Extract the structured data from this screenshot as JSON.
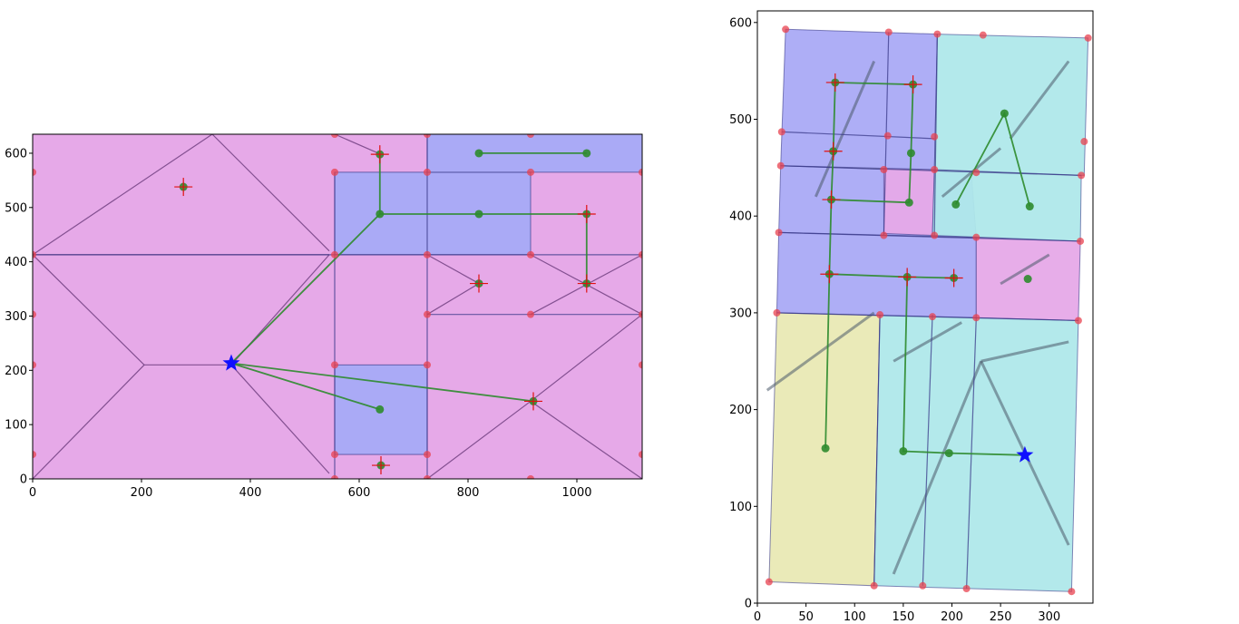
{
  "colors": {
    "magenta_region": "#e6a9e8",
    "blue_region": "#aaaaf6",
    "cyan_region": "#afe8ea",
    "yellow_region": "#e9e9b4",
    "region_edge": "#3a3a8a",
    "voronoi_line": "#6a3a7a",
    "vertex": "#e8414f",
    "path_line": "#2e8b2e",
    "node": "#2e8b2e",
    "goal_marker": "#e01010",
    "star": "#1010ff"
  },
  "chart_data": [
    {
      "type": "scatter",
      "subtype": "cell-decomposition map with planned path",
      "title": "",
      "xlabel": "",
      "ylabel": "",
      "xlim": [
        0,
        1120
      ],
      "ylim": [
        0,
        635
      ],
      "xticks": [
        "0",
        "200",
        "400",
        "600",
        "800",
        "1000"
      ],
      "yticks": [
        "0",
        "100",
        "200",
        "300",
        "400",
        "500",
        "600"
      ],
      "xtick_values": [
        0,
        200,
        400,
        600,
        800,
        1000
      ],
      "ytick_values": [
        0,
        100,
        200,
        300,
        400,
        500,
        600
      ],
      "grid": false,
      "regions": [
        {
          "kind": "free",
          "color": "magenta_region",
          "x": [
            0,
            1120
          ],
          "y": [
            0,
            635
          ]
        },
        {
          "kind": "room",
          "color": "blue_region",
          "x": [
            555,
            915
          ],
          "y": [
            413,
            565
          ]
        },
        {
          "kind": "room",
          "color": "blue_region",
          "x": [
            725,
            1120
          ],
          "y": [
            565,
            635
          ]
        },
        {
          "kind": "room",
          "color": "blue_region",
          "x": [
            555,
            725
          ],
          "y": [
            45,
            210
          ]
        }
      ],
      "partition_lines": [
        {
          "x": [
            0,
            1120
          ],
          "y": [
            413,
            413
          ]
        },
        {
          "x": [
            725,
            1120
          ],
          "y": [
            303,
            303
          ]
        },
        {
          "x": [
            725,
            725
          ],
          "y": [
            0,
            635
          ]
        },
        {
          "x": [
            555,
            555
          ],
          "y": [
            0,
            565
          ]
        }
      ],
      "vertices": [
        [
          0,
          565
        ],
        [
          0,
          413
        ],
        [
          0,
          303
        ],
        [
          0,
          210
        ],
        [
          0,
          45
        ],
        [
          555,
          635
        ],
        [
          555,
          565
        ],
        [
          555,
          413
        ],
        [
          555,
          210
        ],
        [
          555,
          45
        ],
        [
          555,
          0
        ],
        [
          725,
          635
        ],
        [
          725,
          565
        ],
        [
          725,
          413
        ],
        [
          725,
          303
        ],
        [
          725,
          210
        ],
        [
          725,
          45
        ],
        [
          725,
          0
        ],
        [
          915,
          635
        ],
        [
          915,
          565
        ],
        [
          915,
          413
        ],
        [
          915,
          303
        ],
        [
          915,
          0
        ],
        [
          1120,
          565
        ],
        [
          1120,
          413
        ],
        [
          1120,
          303
        ],
        [
          1120,
          210
        ],
        [
          1120,
          45
        ]
      ],
      "waypoints": [
        [
          277,
          538
        ],
        [
          638,
          598
        ],
        [
          638,
          488
        ],
        [
          820,
          488
        ],
        [
          1018,
          488
        ],
        [
          820,
          600
        ],
        [
          1018,
          600
        ],
        [
          820,
          360
        ],
        [
          1018,
          360
        ],
        [
          638,
          128
        ],
        [
          920,
          143
        ],
        [
          640,
          25
        ]
      ],
      "goal_crosses": [
        [
          277,
          538
        ],
        [
          638,
          598
        ],
        [
          1018,
          488
        ],
        [
          820,
          360
        ],
        [
          1018,
          360
        ],
        [
          920,
          143
        ],
        [
          640,
          25
        ]
      ],
      "path": [
        [
          365,
          213
        ],
        [
          638,
          488
        ],
        [
          820,
          488
        ],
        [
          1018,
          488
        ],
        [
          1018,
          360
        ]
      ],
      "path_branch_2": [
        [
          365,
          213
        ],
        [
          638,
          128
        ]
      ],
      "path_branch_3": [
        [
          365,
          213
        ],
        [
          920,
          143
        ]
      ],
      "path_branch_4": [
        [
          820,
          600
        ],
        [
          1018,
          600
        ]
      ],
      "path_branch_5": [
        [
          638,
          598
        ],
        [
          638,
          488
        ]
      ],
      "start": [
        365,
        213
      ]
    },
    {
      "type": "scatter",
      "subtype": "occupancy map with region decomposition and path",
      "title": "",
      "xlabel": "",
      "ylabel": "",
      "xlim": [
        0,
        345
      ],
      "ylim": [
        0,
        612
      ],
      "xticks": [
        "0",
        "50",
        "100",
        "150",
        "200",
        "250",
        "300"
      ],
      "yticks": [
        "0",
        "100",
        "200",
        "300",
        "400",
        "500",
        "600"
      ],
      "xtick_values": [
        0,
        50,
        100,
        150,
        200,
        250,
        300
      ],
      "ytick_values": [
        0,
        100,
        200,
        300,
        400,
        500,
        600
      ],
      "grid": false,
      "regions": [
        {
          "color": "yellow_region",
          "poly": [
            [
              12,
              22
            ],
            [
              120,
              18
            ],
            [
              126,
              298
            ],
            [
              20,
              300
            ]
          ]
        },
        {
          "color": "cyan_region",
          "poly": [
            [
              120,
              18
            ],
            [
              323,
              12
            ],
            [
              330,
              292
            ],
            [
              126,
              298
            ]
          ]
        },
        {
          "color": "blue_region",
          "poly": [
            [
              20,
              300
            ],
            [
              225,
              295
            ],
            [
              225,
              378
            ],
            [
              22,
              383
            ]
          ]
        },
        {
          "color": "magenta_region",
          "poly": [
            [
              225,
              378
            ],
            [
              332,
              374
            ],
            [
              330,
              292
            ],
            [
              225,
              295
            ]
          ]
        },
        {
          "color": "blue_region",
          "poly": [
            [
              22,
              383
            ],
            [
              225,
              378
            ],
            [
              220,
              445
            ],
            [
              24,
              452
            ]
          ]
        },
        {
          "color": "magenta_region",
          "poly": [
            [
              130,
              450
            ],
            [
              182,
              448
            ],
            [
              180,
              380
            ],
            [
              130,
              382
            ]
          ]
        },
        {
          "color": "cyan_region",
          "poly": [
            [
              182,
              448
            ],
            [
              333,
              442
            ],
            [
              332,
              374
            ],
            [
              180,
              380
            ]
          ]
        },
        {
          "color": "blue_region",
          "poly": [
            [
              24,
              452
            ],
            [
              182,
              448
            ],
            [
              185,
              588
            ],
            [
              29,
              593
            ]
          ]
        },
        {
          "color": "cyan_region",
          "poly": [
            [
              182,
              448
            ],
            [
              336,
              442
            ],
            [
              340,
              584
            ],
            [
              185,
              588
            ]
          ]
        }
      ],
      "partition_lines": [
        [
          [
            120,
            18
          ],
          [
            126,
            298
          ]
        ],
        [
          [
            170,
            18
          ],
          [
            180,
            298
          ]
        ],
        [
          [
            215,
            15
          ],
          [
            225,
            295
          ]
        ],
        [
          [
            20,
            300
          ],
          [
            330,
            292
          ]
        ],
        [
          [
            22,
            383
          ],
          [
            332,
            374
          ]
        ],
        [
          [
            24,
            452
          ],
          [
            333,
            442
          ]
        ],
        [
          [
            25,
            487
          ],
          [
            182,
            480
          ]
        ],
        [
          [
            130,
            380
          ],
          [
            135,
            590
          ]
        ],
        [
          [
            182,
            380
          ],
          [
            185,
            588
          ]
        ]
      ],
      "vertices": [
        [
          12,
          22
        ],
        [
          120,
          18
        ],
        [
          170,
          18
        ],
        [
          215,
          15
        ],
        [
          323,
          12
        ],
        [
          20,
          300
        ],
        [
          126,
          298
        ],
        [
          180,
          296
        ],
        [
          225,
          295
        ],
        [
          330,
          292
        ],
        [
          22,
          383
        ],
        [
          130,
          380
        ],
        [
          182,
          380
        ],
        [
          225,
          378
        ],
        [
          332,
          374
        ],
        [
          24,
          452
        ],
        [
          130,
          448
        ],
        [
          182,
          448
        ],
        [
          225,
          445
        ],
        [
          333,
          442
        ],
        [
          25,
          487
        ],
        [
          134,
          483
        ],
        [
          182,
          482
        ],
        [
          336,
          477
        ],
        [
          29,
          593
        ],
        [
          135,
          590
        ],
        [
          185,
          588
        ],
        [
          232,
          587
        ],
        [
          340,
          584
        ]
      ],
      "waypoints": [
        [
          70,
          160
        ],
        [
          150,
          157
        ],
        [
          197,
          155
        ],
        [
          74,
          340
        ],
        [
          154,
          337
        ],
        [
          202,
          336
        ],
        [
          278,
          335
        ],
        [
          76,
          417
        ],
        [
          156,
          414
        ],
        [
          204,
          412
        ],
        [
          280,
          410
        ],
        [
          78,
          467
        ],
        [
          158,
          465
        ],
        [
          80,
          538
        ],
        [
          160,
          536
        ],
        [
          254,
          506
        ]
      ],
      "goal_crosses": [
        [
          74,
          340
        ],
        [
          154,
          337
        ],
        [
          202,
          336
        ],
        [
          76,
          417
        ],
        [
          78,
          467
        ],
        [
          80,
          538
        ],
        [
          160,
          536
        ]
      ],
      "path": [
        [
          275,
          153
        ],
        [
          197,
          155
        ],
        [
          150,
          157
        ],
        [
          154,
          337
        ],
        [
          74,
          340
        ],
        [
          70,
          160
        ]
      ],
      "path_branch_2": [
        [
          154,
          337
        ],
        [
          202,
          336
        ]
      ],
      "path_branch_3": [
        [
          74,
          340
        ],
        [
          76,
          417
        ],
        [
          156,
          414
        ],
        [
          158,
          465
        ],
        [
          160,
          536
        ],
        [
          80,
          538
        ],
        [
          78,
          467
        ],
        [
          76,
          417
        ]
      ],
      "path_branch_4": [
        [
          204,
          412
        ],
        [
          254,
          506
        ],
        [
          280,
          410
        ]
      ],
      "start": [
        275,
        153
      ]
    }
  ]
}
